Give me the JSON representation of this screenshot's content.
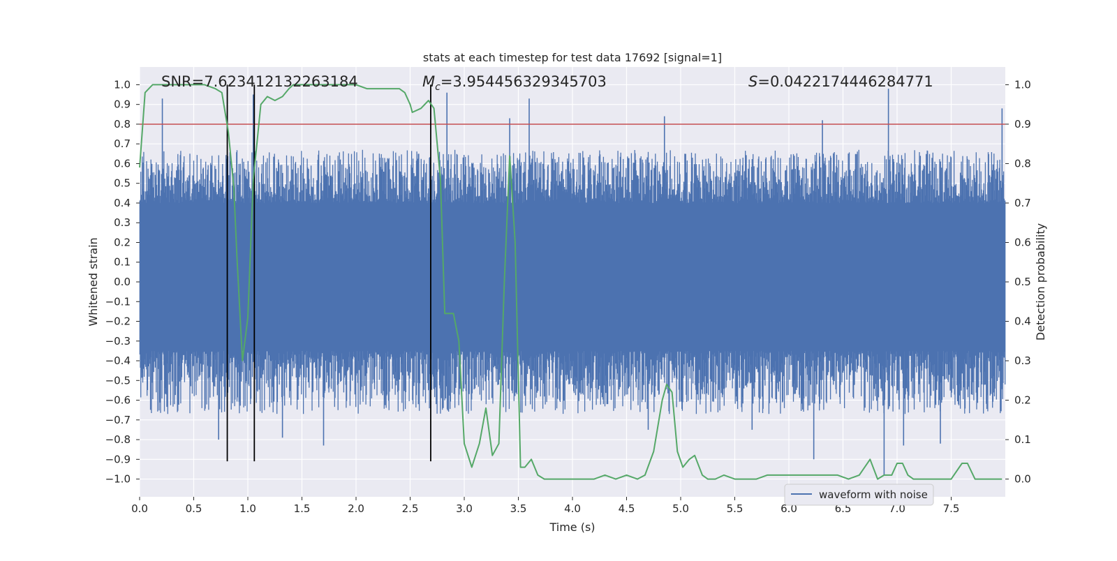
{
  "chart_data": {
    "type": "line",
    "title": "stats at each timestep for test data 17692 [signal=1]",
    "xlabel": "Time (s)",
    "ylabel_left": "Whitened strain",
    "ylabel_right": "Detection probability",
    "xlim": [
      0.0,
      8.0
    ],
    "ylim_left": [
      -1.09,
      1.09
    ],
    "ylim_right": [
      -0.045,
      1.045
    ],
    "x_ticks": [
      "0.0",
      "0.5",
      "1.0",
      "1.5",
      "2.0",
      "2.5",
      "3.0",
      "3.5",
      "4.0",
      "4.5",
      "5.0",
      "5.5",
      "6.0",
      "6.5",
      "7.0",
      "7.5"
    ],
    "y_left_ticks": [
      "-1.0",
      "-0.9",
      "-0.8",
      "-0.7",
      "-0.6",
      "-0.5",
      "-0.4",
      "-0.3",
      "-0.2",
      "-0.1",
      "0.0",
      "0.1",
      "0.2",
      "0.3",
      "0.4",
      "0.5",
      "0.6",
      "0.7",
      "0.8",
      "0.9",
      "1.0"
    ],
    "y_right_ticks": [
      "0.0",
      "0.1",
      "0.2",
      "0.3",
      "0.4",
      "0.5",
      "0.6",
      "0.7",
      "0.8",
      "0.9",
      "1.0"
    ],
    "annotations": {
      "snr": "SNR=7.623412132263184",
      "mc_symbol": "M",
      "mc_sub": "c",
      "mc_value": "=3.954456329345703",
      "s_symbol": "S",
      "s_value": "=0.0422174446284771"
    },
    "legend": {
      "label": "waveform with noise",
      "position": "lower-right"
    },
    "threshold": {
      "value": 0.9,
      "axis": "right",
      "color": "#c44e52"
    },
    "event_lines": {
      "times": [
        0.81,
        1.06,
        2.69
      ],
      "y_range": [
        -0.91,
        1.0
      ],
      "color": "#000000"
    },
    "series": [
      {
        "name": "waveform with noise",
        "axis": "left",
        "style": "dense-noise",
        "color": "#4c72b0",
        "core_band": [
          -0.35,
          0.4
        ],
        "typical_envelope": [
          -0.62,
          0.62
        ],
        "spikes": [
          {
            "x": 0.21,
            "y": 0.93
          },
          {
            "x": 1.05,
            "y": 0.95
          },
          {
            "x": 2.84,
            "y": 0.96
          },
          {
            "x": 3.42,
            "y": 0.83
          },
          {
            "x": 3.6,
            "y": 0.93
          },
          {
            "x": 4.85,
            "y": 0.84
          },
          {
            "x": 6.31,
            "y": 0.82
          },
          {
            "x": 6.92,
            "y": 0.98
          },
          {
            "x": 7.97,
            "y": 0.88
          },
          {
            "x": 0.73,
            "y": -0.8
          },
          {
            "x": 1.32,
            "y": -0.79
          },
          {
            "x": 1.7,
            "y": -0.83
          },
          {
            "x": 6.23,
            "y": -0.9
          },
          {
            "x": 6.88,
            "y": -0.98
          },
          {
            "x": 7.06,
            "y": -0.83
          },
          {
            "x": 7.4,
            "y": -0.82
          },
          {
            "x": 5.66,
            "y": -0.75
          },
          {
            "x": 4.7,
            "y": -0.75
          }
        ]
      },
      {
        "name": "detection probability",
        "axis": "right",
        "color": "#55a868",
        "x": [
          0.0,
          0.05,
          0.12,
          0.2,
          0.3,
          0.4,
          0.5,
          0.6,
          0.7,
          0.76,
          0.82,
          0.87,
          0.9,
          0.95,
          1.0,
          1.05,
          1.08,
          1.12,
          1.18,
          1.25,
          1.32,
          1.38,
          1.42,
          1.5,
          1.6,
          1.7,
          1.8,
          1.9,
          2.0,
          2.1,
          2.2,
          2.3,
          2.4,
          2.45,
          2.5,
          2.52,
          2.6,
          2.67,
          2.72,
          2.78,
          2.82,
          2.9,
          2.95,
          3.0,
          3.07,
          3.14,
          3.2,
          3.26,
          3.32,
          3.37,
          3.42,
          3.47,
          3.52,
          3.56,
          3.62,
          3.68,
          3.74,
          3.8,
          3.9,
          4.0,
          4.1,
          4.2,
          4.3,
          4.4,
          4.5,
          4.6,
          4.67,
          4.75,
          4.83,
          4.87,
          4.92,
          4.97,
          5.02,
          5.08,
          5.13,
          5.2,
          5.25,
          5.32,
          5.4,
          5.5,
          5.58,
          5.7,
          5.8,
          5.9,
          6.0,
          6.05,
          6.15,
          6.25,
          6.35,
          6.45,
          6.55,
          6.65,
          6.75,
          6.82,
          6.88,
          6.95,
          7.0,
          7.05,
          7.1,
          7.15,
          7.2,
          7.3,
          7.4,
          7.5,
          7.6,
          7.65,
          7.72,
          7.8,
          7.9,
          7.97
        ],
        "y": [
          0.79,
          0.98,
          1.0,
          1.0,
          1.0,
          1.0,
          1.0,
          1.0,
          0.99,
          0.98,
          0.88,
          0.74,
          0.56,
          0.3,
          0.41,
          0.76,
          0.84,
          0.95,
          0.97,
          0.96,
          0.97,
          0.99,
          1.0,
          1.0,
          1.0,
          1.0,
          1.0,
          1.0,
          1.0,
          0.99,
          0.99,
          0.99,
          0.99,
          0.98,
          0.95,
          0.93,
          0.94,
          0.96,
          0.94,
          0.76,
          0.42,
          0.42,
          0.35,
          0.09,
          0.03,
          0.09,
          0.18,
          0.06,
          0.09,
          0.5,
          0.82,
          0.6,
          0.03,
          0.03,
          0.05,
          0.01,
          0.0,
          0.0,
          0.0,
          0.0,
          0.0,
          0.0,
          0.01,
          0.0,
          0.01,
          0.0,
          0.01,
          0.07,
          0.2,
          0.24,
          0.22,
          0.07,
          0.03,
          0.05,
          0.06,
          0.01,
          0.0,
          0.0,
          0.01,
          0.0,
          0.0,
          0.0,
          0.01,
          0.01,
          0.01,
          0.01,
          0.01,
          0.01,
          0.01,
          0.01,
          0.0,
          0.01,
          0.05,
          0.0,
          0.01,
          0.01,
          0.04,
          0.04,
          0.01,
          0.0,
          0.0,
          0.0,
          0.0,
          0.0,
          0.04,
          0.04,
          0.0,
          0.0,
          0.0,
          0.0
        ]
      }
    ]
  }
}
